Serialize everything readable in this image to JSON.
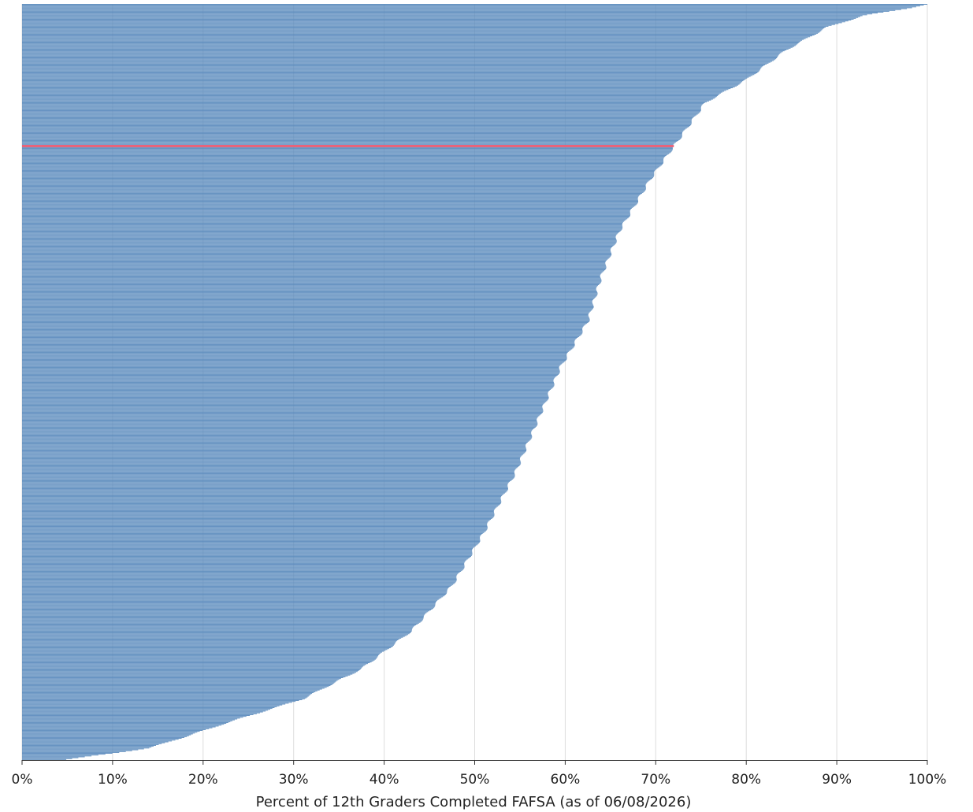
{
  "chart_data": {
    "type": "bar",
    "orientation": "horizontal",
    "sorted": "descending",
    "n_bars": 860,
    "xlabel": "Percent of 12th Graders Completed FAFSA (as of 06/08/2026)",
    "ylabel": "",
    "title": "",
    "xlim": [
      0,
      100
    ],
    "x_ticks": [
      0,
      10,
      20,
      30,
      40,
      50,
      60,
      70,
      80,
      90,
      100
    ],
    "x_tick_labels": [
      "0%",
      "10%",
      "20%",
      "30%",
      "40%",
      "50%",
      "60%",
      "70%",
      "80%",
      "90%",
      "100%"
    ],
    "grid": "vertical",
    "bar_color": "#5b8bbd",
    "highlight_color": "#e8637a",
    "highlight": {
      "rank_fraction": 0.188,
      "value": 72
    },
    "profile": [
      {
        "rank_fraction": 0.0,
        "value": 100
      },
      {
        "rank_fraction": 0.005,
        "value": 98
      },
      {
        "rank_fraction": 0.015,
        "value": 93
      },
      {
        "rank_fraction": 0.03,
        "value": 89
      },
      {
        "rank_fraction": 0.06,
        "value": 84.5
      },
      {
        "rank_fraction": 0.1,
        "value": 80
      },
      {
        "rank_fraction": 0.13,
        "value": 75.5
      },
      {
        "rank_fraction": 0.188,
        "value": 72
      },
      {
        "rank_fraction": 0.23,
        "value": 69.5
      },
      {
        "rank_fraction": 0.3,
        "value": 66
      },
      {
        "rank_fraction": 0.36,
        "value": 64
      },
      {
        "rank_fraction": 0.42,
        "value": 62.5
      },
      {
        "rank_fraction": 0.48,
        "value": 59.5
      },
      {
        "rank_fraction": 0.55,
        "value": 57
      },
      {
        "rank_fraction": 0.62,
        "value": 54.5
      },
      {
        "rank_fraction": 0.7,
        "value": 51
      },
      {
        "rank_fraction": 0.77,
        "value": 47.5
      },
      {
        "rank_fraction": 0.83,
        "value": 43
      },
      {
        "rank_fraction": 0.88,
        "value": 37.5
      },
      {
        "rank_fraction": 0.92,
        "value": 31
      },
      {
        "rank_fraction": 0.95,
        "value": 23
      },
      {
        "rank_fraction": 0.97,
        "value": 18
      },
      {
        "rank_fraction": 0.985,
        "value": 14
      },
      {
        "rank_fraction": 1.0,
        "value": 5
      }
    ]
  }
}
